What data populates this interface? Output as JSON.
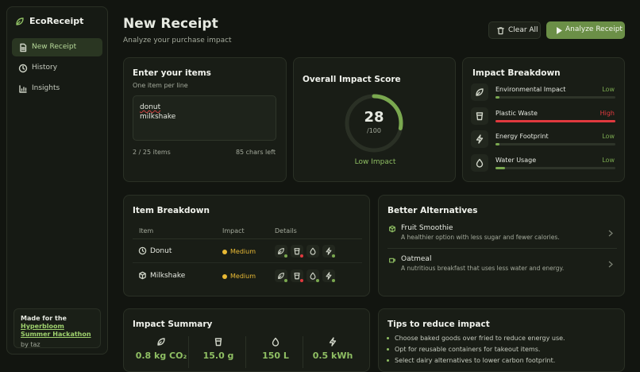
{
  "sidebar": {
    "brand": "EcoReceipt",
    "nav": [
      "New Receipt",
      "History",
      "Insights"
    ],
    "credit": {
      "prefix": "Made for the",
      "link": "Hyperbloom Summer Hackathon",
      "by": "by taz"
    }
  },
  "header": {
    "title": "New Receipt",
    "subtitle": "Analyze your purchase impact",
    "buttons": [
      "Clear All",
      "Analyze Receipt"
    ]
  },
  "input": {
    "title": "Enter your items",
    "hint": "One item per line",
    "lines": [
      "donut",
      "milkshake"
    ],
    "count": "2 / 25 items",
    "chars": "85 chars left"
  },
  "score": {
    "title": "Overall Impact Score",
    "value": 28,
    "max": {
      "value": 100,
      "label": "/100"
    },
    "verdict": "Low Impact"
  },
  "breakdown": {
    "title": "Impact Breakdown",
    "rows": [
      {
        "label": "Environmental Impact",
        "rating": "Low",
        "level": 3,
        "color": "#7aa84f"
      },
      {
        "label": "Plastic Waste",
        "rating": "High",
        "level": 100,
        "color": "#e0393e"
      },
      {
        "label": "Energy Footprint",
        "rating": "Low",
        "level": 3,
        "color": "#7aa84f"
      },
      {
        "label": "Water Usage",
        "rating": "Low",
        "level": 8,
        "color": "#7aa84f"
      }
    ]
  },
  "items": {
    "title": "Item Breakdown",
    "columns": [
      "Item",
      "Impact",
      "Details"
    ],
    "rows": [
      [
        "Donut",
        "Medium"
      ],
      [
        "Milkshake",
        "Medium"
      ]
    ]
  },
  "alternatives": {
    "title": "Better Alternatives",
    "rows": [
      [
        "Fruit Smoothie",
        "A healthier option with less sugar and fewer calories."
      ],
      [
        "Oatmeal",
        "A nutritious breakfast that uses less water and energy."
      ]
    ]
  },
  "summary": {
    "title": "Impact Summary",
    "values": [
      "0.8 kg CO₂",
      "15.0 g",
      "150 L",
      "0.5 kWh"
    ]
  },
  "tips": {
    "title": "Tips to reduce impact",
    "rows": [
      "Choose baked goods over fried to reduce energy use.",
      "Opt for reusable containers for takeout items.",
      "Select dairy alternatives to lower carbon footprint."
    ]
  }
}
